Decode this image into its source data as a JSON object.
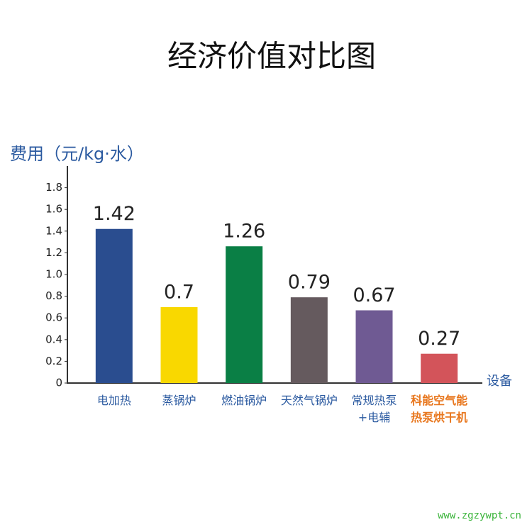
{
  "chart_data": {
    "type": "bar",
    "title": "经济价值对比图",
    "y_label": "费用（元/kg·水）",
    "x_label": "设备",
    "categories": [
      "电加热",
      "蒸锅炉",
      "燃油锅炉",
      "天然气锅炉",
      "常规热泵\n+电辅",
      "科能空气能\n热泵烘干机"
    ],
    "category_label_colors": [
      "#2b5aa0",
      "#2b5aa0",
      "#2b5aa0",
      "#2b5aa0",
      "#2b5aa0",
      "#e8771e"
    ],
    "values": [
      1.42,
      0.7,
      1.26,
      0.79,
      0.67,
      0.27
    ],
    "colors": [
      "#2a4d8f",
      "#f9d800",
      "#0a7f45",
      "#655a5e",
      "#6f5a93",
      "#d3545a"
    ],
    "ylim": [
      0,
      2
    ],
    "yticks": [
      0,
      0.2,
      0.4,
      0.6,
      0.8,
      {
        "value": 1,
        "label": "1.0"
      },
      1.2,
      1.4,
      1.6,
      1.8
    ],
    "grid": false,
    "watermark": "www.zgzywpt.cn"
  }
}
